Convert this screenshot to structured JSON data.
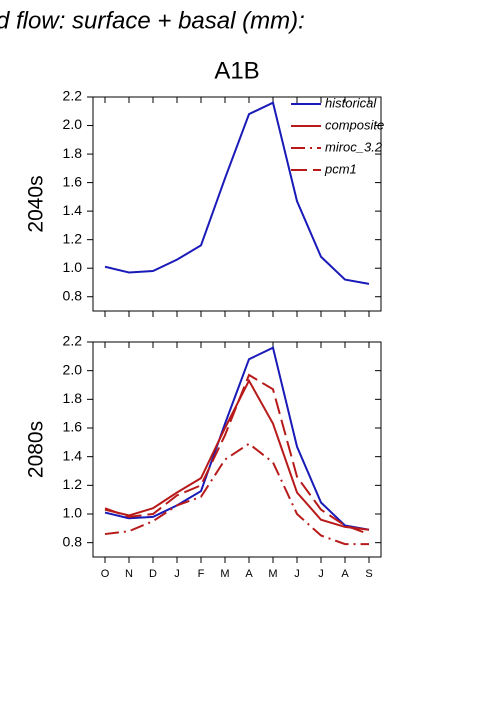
{
  "chart_data": [
    {
      "type": "line",
      "title": "d flow: surface + basal (mm):",
      "subtitle": "A1B",
      "ylabel": "2040s",
      "ylim": [
        0.7,
        2.2
      ],
      "yticks": [
        {
          "value": 0.8,
          "label": "0.8"
        },
        {
          "value": 1.0,
          "label": "1.0"
        },
        1.2,
        1.4,
        1.6,
        1.8,
        {
          "value": 2.0,
          "label": "2.0"
        },
        2.2
      ],
      "series": [
        {
          "color": "#1a1ab8",
          "dash": "solid",
          "values": [
            1.01,
            0.97,
            0.98,
            1.06,
            1.16,
            1.63,
            2.08,
            2.16,
            1.47,
            1.08,
            0.92,
            0.89
          ]
        }
      ]
    },
    {
      "type": "line",
      "ylabel": "2080s",
      "categories": [
        "O",
        "N",
        "D",
        "J",
        "F",
        "M",
        "A",
        "M",
        "J",
        "J",
        "A",
        "S"
      ],
      "ylim": [
        0.7,
        2.2
      ],
      "yticks": [
        {
          "value": 0.8,
          "label": "0.8"
        },
        {
          "value": 1.0,
          "label": "1.0"
        },
        1.2,
        1.4,
        1.6,
        1.8,
        {
          "value": 2.0,
          "label": "2.0"
        },
        2.2
      ],
      "series": [
        {
          "name": "historical",
          "color": "#1a1ab8",
          "dash": "solid",
          "values": [
            1.01,
            0.97,
            0.98,
            1.06,
            1.16,
            1.63,
            2.08,
            2.16,
            1.47,
            1.08,
            0.92,
            0.89
          ]
        },
        {
          "name": "composite",
          "color": "#b81a1a",
          "dash": "solid",
          "values": [
            1.03,
            0.99,
            1.04,
            1.15,
            1.25,
            1.6,
            1.93,
            1.63,
            1.15,
            0.96,
            0.91,
            0.89
          ]
        },
        {
          "name": "miroc_3.2",
          "color": "#b81a1a",
          "dash": "dashdot",
          "values": [
            0.86,
            0.88,
            0.95,
            1.06,
            1.12,
            1.38,
            1.49,
            1.36,
            1.0,
            0.85,
            0.79,
            0.79
          ]
        },
        {
          "name": "pcm1",
          "color": "#b81a1a",
          "dash": "longdash",
          "values": [
            1.04,
            0.98,
            1.0,
            1.13,
            1.2,
            1.55,
            1.97,
            1.87,
            1.26,
            1.03,
            0.92,
            0.86
          ]
        }
      ]
    }
  ]
}
